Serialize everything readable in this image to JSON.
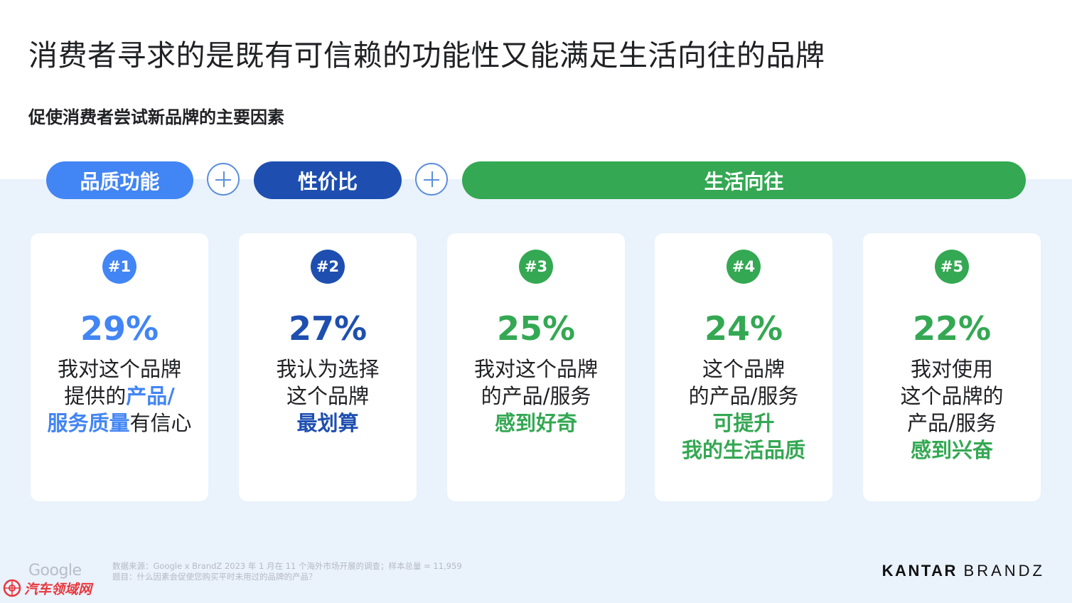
{
  "title": "消费者寻求的是既有可信赖的功能性又能满足生活向往的品牌",
  "subtitle": "促使消费者尝试新品牌的主要因素",
  "categories": {
    "functional": "品质功能",
    "value": "性价比",
    "aspiration": "生活向往"
  },
  "colors": {
    "light_blue": "#4285f4",
    "dark_blue": "#1e4fb0",
    "green": "#34a853",
    "band": "#eaf2fc"
  },
  "cards": [
    {
      "rank": "#1",
      "percent": "29%",
      "line1": "我对这个品牌",
      "line2_a": "提供的",
      "line2_b": "产品/",
      "line3_a": "服务质量",
      "line3_b": "有信心"
    },
    {
      "rank": "#2",
      "percent": "27%",
      "line1": "我认为选择",
      "line2": "这个品牌",
      "line3": "最划算"
    },
    {
      "rank": "#3",
      "percent": "25%",
      "line1": "我对这个品牌",
      "line2": "的产品/服务",
      "line3": "感到好奇"
    },
    {
      "rank": "#4",
      "percent": "24%",
      "line1": "这个品牌",
      "line2": "的产品/服务",
      "line3": "可提升",
      "line4": "我的生活品质"
    },
    {
      "rank": "#5",
      "percent": "22%",
      "line1": "我对使用",
      "line2": "这个品牌的",
      "line3": "产品/服务",
      "line4": "感到兴奋"
    }
  ],
  "footer": {
    "google_logo": "Google",
    "source_line1": "数据来源：Google x BrandZ 2023 年 1 月在 11 个海外市场开展的调查；样本总量 = 11,959",
    "source_line2": "题目：什么因素会促使您购买平时未用过的品牌的产品？",
    "watermark": "汽车领域网",
    "kantar": "KANTAR",
    "brandz": "BRANDZ"
  }
}
